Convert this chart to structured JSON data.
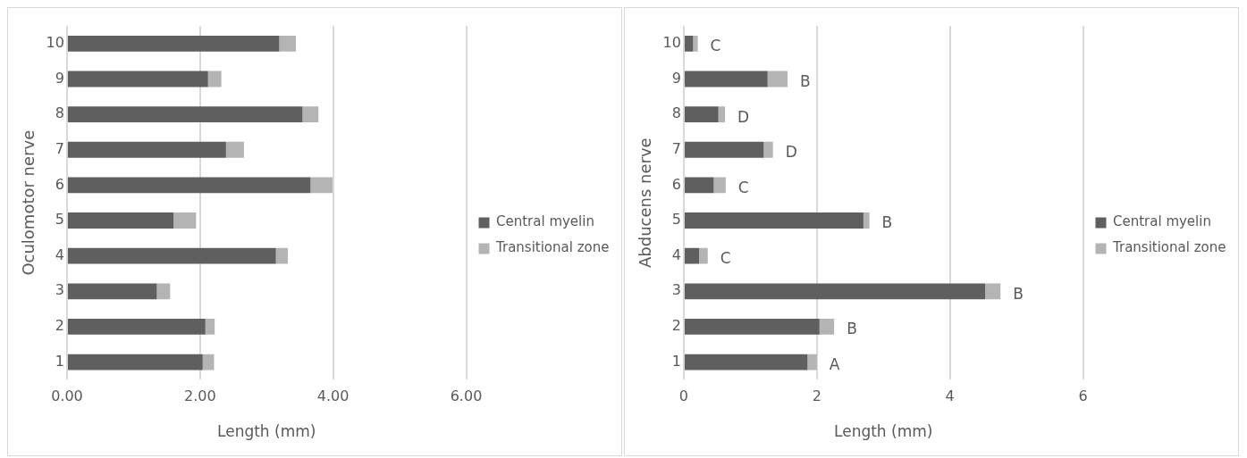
{
  "chart_data": [
    {
      "type": "bar",
      "orientation": "horizontal",
      "stacked": true,
      "xlabel": "Length (mm)",
      "ylabel": "Oculomotor nerve",
      "categories": [
        "10",
        "9",
        "8",
        "7",
        "6",
        "5",
        "4",
        "3",
        "2",
        "1"
      ],
      "series": [
        {
          "name": "Central myelin",
          "color": "#5f5f5f",
          "values": [
            3.19,
            2.12,
            3.54,
            2.39,
            3.66,
            1.6,
            3.14,
            1.35,
            2.08,
            2.04
          ]
        },
        {
          "name": "Transitional zone",
          "color": "#b4b4b4",
          "values": [
            0.25,
            0.2,
            0.24,
            0.27,
            0.33,
            0.34,
            0.18,
            0.2,
            0.14,
            0.17
          ]
        }
      ],
      "xlim": [
        0,
        6
      ],
      "xticks": [
        {
          "value": 0,
          "label": "0.00"
        },
        {
          "value": 2,
          "label": "2.00"
        },
        {
          "value": 4,
          "label": "4.00"
        },
        {
          "value": 6,
          "label": "6.00"
        }
      ],
      "grid": "x",
      "legend": "right"
    },
    {
      "type": "bar",
      "orientation": "horizontal",
      "stacked": true,
      "xlabel": "Length (mm)",
      "ylabel": "Abducens nerve",
      "categories": [
        "10",
        "9",
        "8",
        "7",
        "6",
        "5",
        "4",
        "3",
        "2",
        "1"
      ],
      "series": [
        {
          "name": "Central myelin",
          "color": "#5f5f5f",
          "values": [
            0.14,
            1.26,
            0.52,
            1.2,
            0.45,
            2.7,
            0.23,
            4.53,
            2.04,
            1.86
          ]
        },
        {
          "name": "Transitional zone",
          "color": "#b4b4b4",
          "values": [
            0.07,
            0.3,
            0.1,
            0.14,
            0.18,
            0.09,
            0.13,
            0.23,
            0.22,
            0.14
          ]
        }
      ],
      "xlim": [
        0,
        6
      ],
      "xticks": [
        0,
        2,
        4,
        6
      ],
      "grid": "x",
      "legend": "right",
      "annotations": [
        {
          "text": "C",
          "x": 0.21,
          "y": "10"
        },
        {
          "text": "B",
          "x": 1.56,
          "y": "9"
        },
        {
          "text": "D",
          "x": 0.62,
          "y": "8"
        },
        {
          "text": "D",
          "x": 1.34,
          "y": "7"
        },
        {
          "text": "C",
          "x": 0.63,
          "y": "6"
        },
        {
          "text": "B",
          "x": 2.79,
          "y": "5"
        },
        {
          "text": "C",
          "x": 0.36,
          "y": "4"
        },
        {
          "text": "B",
          "x": 4.76,
          "y": "3"
        },
        {
          "text": "B",
          "x": 2.26,
          "y": "2"
        },
        {
          "text": "A",
          "x": 2.0,
          "y": "1"
        }
      ]
    }
  ]
}
